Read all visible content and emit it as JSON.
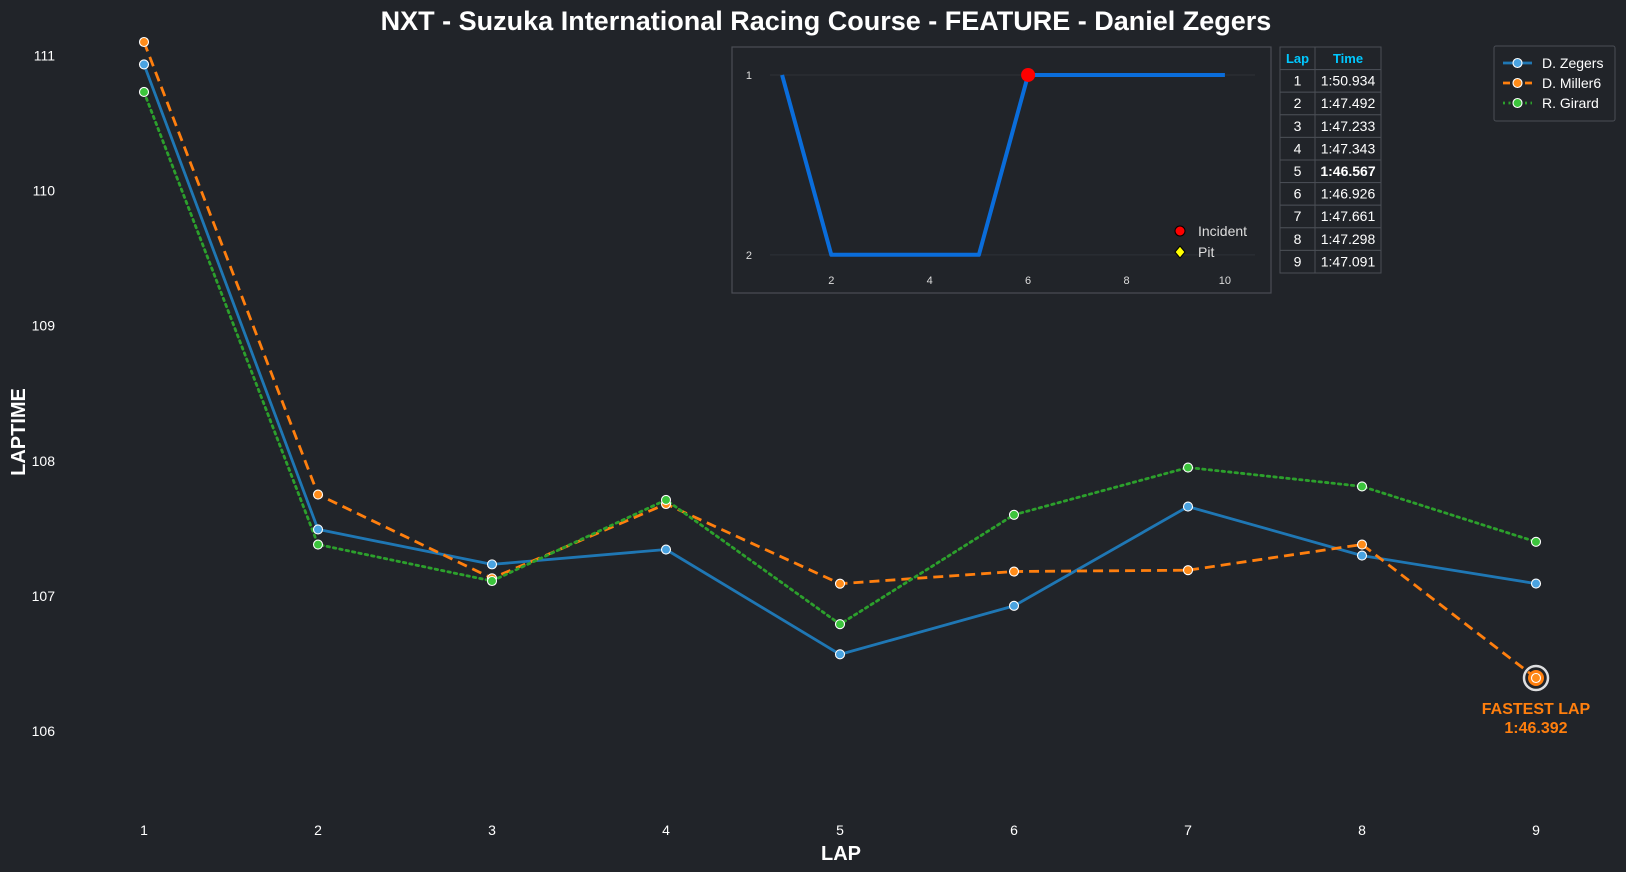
{
  "chart_data": [
    {
      "type": "line",
      "title": "NXT - Suzuka International Racing Course - FEATURE - Daniel Zegers",
      "xlabel": "LAP",
      "ylabel": "LAPTIME",
      "x": [
        1,
        2,
        3,
        4,
        5,
        6,
        7,
        8,
        9
      ],
      "xlim": [
        0.5,
        9.5
      ],
      "ylim": [
        105.4,
        111.1
      ],
      "yticks": [
        106,
        107,
        108,
        109,
        110,
        111
      ],
      "grid": false,
      "legend_position": "top-right",
      "series": [
        {
          "name": "D. Zegers",
          "color": "#1f77b4",
          "style": "solid",
          "marker_fill": "#4aa3e0",
          "values": [
            110.934,
            107.492,
            107.233,
            107.343,
            106.567,
            106.926,
            107.661,
            107.298,
            107.091
          ]
        },
        {
          "name": "D. Miller6",
          "color": "#ff7f0e",
          "style": "dashed",
          "marker_fill": "#ff8c1a",
          "values": [
            111.1,
            107.75,
            107.13,
            107.68,
            107.09,
            107.18,
            107.19,
            107.38,
            106.392
          ]
        },
        {
          "name": "R. Girard",
          "color": "#2ca02c",
          "style": "dotted",
          "marker_fill": "#3cc43c",
          "values": [
            110.73,
            107.38,
            107.11,
            107.71,
            106.79,
            107.6,
            107.95,
            107.81,
            107.4
          ]
        }
      ],
      "annotation": {
        "label": "FASTEST LAP",
        "value": "1:46.392",
        "x": 9,
        "y": 106.392,
        "color": "#ff7f0e"
      }
    },
    {
      "type": "line",
      "title": "",
      "x": [
        1,
        2,
        3,
        4,
        5,
        6,
        7,
        8,
        9,
        10
      ],
      "values": [
        1,
        2,
        2,
        2,
        2,
        1,
        1,
        1,
        1,
        1
      ],
      "xticks": [
        2,
        4,
        6,
        8,
        10
      ],
      "yticks": [
        1,
        2
      ],
      "xlim": [
        0.45,
        10.55
      ],
      "ylim": [
        2.09,
        0.9
      ],
      "color": "#0a6ddb",
      "incidents": [
        {
          "x": 6,
          "y": 1
        }
      ],
      "legend": [
        {
          "label": "Incident",
          "marker": "circle",
          "color": "#ff0000"
        },
        {
          "label": "Pit",
          "marker": "diamond",
          "color": "#ffff00"
        }
      ]
    },
    {
      "type": "table",
      "columns": [
        "Lap",
        "Time"
      ],
      "header_color": "#00c8ff",
      "highlight_color": "#ffff00",
      "highlight_row": 4,
      "rows": [
        [
          "1",
          "1:50.934"
        ],
        [
          "2",
          "1:47.492"
        ],
        [
          "3",
          "1:47.233"
        ],
        [
          "4",
          "1:47.343"
        ],
        [
          "5",
          "1:46.567"
        ],
        [
          "6",
          "1:46.926"
        ],
        [
          "7",
          "1:47.661"
        ],
        [
          "8",
          "1:47.298"
        ],
        [
          "9",
          "1:47.091"
        ]
      ]
    }
  ]
}
